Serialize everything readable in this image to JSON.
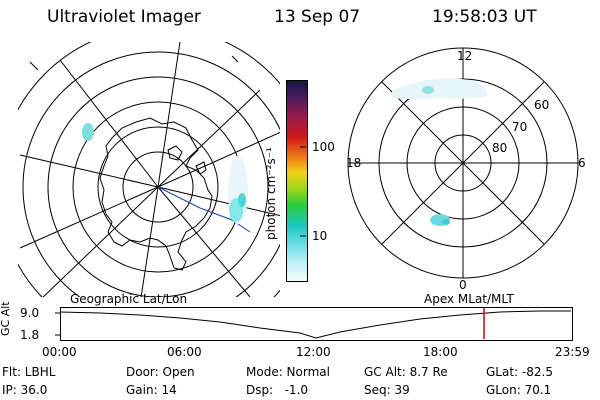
{
  "header": {
    "title": "Ultraviolet Imager",
    "date": "13 Sep 07",
    "time": "19:58:03 UT"
  },
  "geo_panel": {
    "label": "Geographic Lat/Lon"
  },
  "apex_panel": {
    "label": "Apex MLat/MLT",
    "mlt_labels": {
      "top": "12",
      "bottom": "0",
      "left": "18",
      "right": "6"
    },
    "mlat_labels": [
      "60",
      "70",
      "80"
    ]
  },
  "colorbar": {
    "unit_label": "photon cm⁻²s⁻¹",
    "ticks": [
      "100",
      "10"
    ],
    "scale": "log"
  },
  "timeline": {
    "y_label": "GC Alt",
    "y_ticks": [
      "9.0",
      "1.8"
    ],
    "x_ticks": [
      "00:00",
      "06:00",
      "12:00",
      "18:00",
      "23:59"
    ],
    "marker_time": "19:58:03",
    "marker_color": "#cc0000"
  },
  "info": {
    "flt": "Flt: LBHL",
    "ip": "IP: 36.0",
    "door": "Door: Open",
    "gain": "Gain: 14",
    "mode": "Mode: Normal",
    "dsp": "Dsp:   -1.0",
    "gc_alt": "GC Alt: 8.7 Re",
    "seq": "Seq: 39",
    "glat": "GLat: -82.5",
    "glon": "GLon: 70.1"
  }
}
